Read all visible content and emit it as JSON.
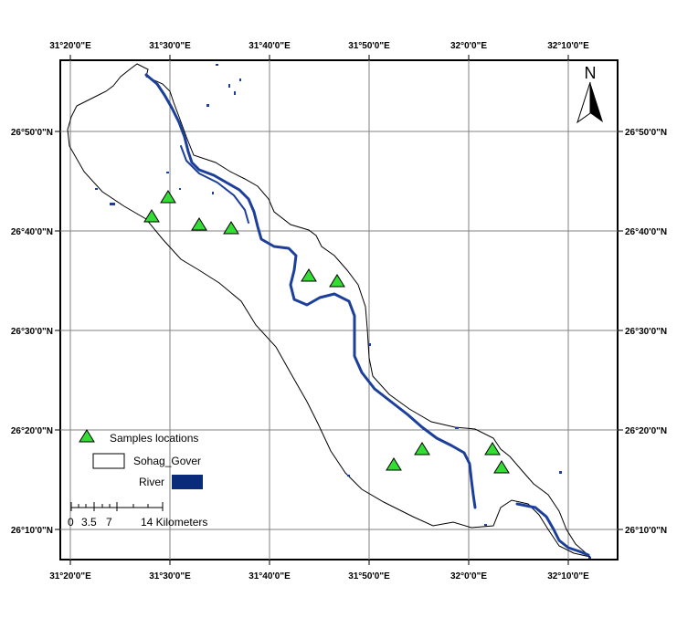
{
  "map": {
    "lon_labels": [
      "31°20'0\"E",
      "31°30'0\"E",
      "31°40'0\"E",
      "31°50'0\"E",
      "32°0'0\"E",
      "32°10'0\"E"
    ],
    "lat_labels": [
      "26°50'0\"N",
      "26°40'0\"N",
      "26°30'0\"N",
      "26°20'0\"N",
      "26°10'0\"N"
    ],
    "north_label": "N",
    "legend": {
      "samples_label": "Samples locations",
      "boundary_label": "Sohag_Gover",
      "river_label": "River"
    },
    "scale": {
      "ticks": [
        "0",
        "3.5",
        "7",
        "14 Kilometers"
      ]
    },
    "colors": {
      "river": "#1c3f9c",
      "sample_fill": "#33dd33",
      "boundary": "#000000",
      "grid": "#808080"
    },
    "samples_count": 10
  }
}
